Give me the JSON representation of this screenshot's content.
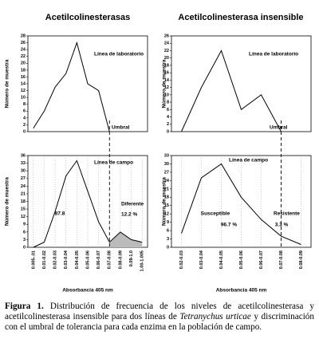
{
  "column_titles": [
    "Acetilcolinesterasas",
    "Acetilcolinesterasa insensible"
  ],
  "chart_data": [
    {
      "type": "line",
      "y_label": "Número de muestra",
      "ylim": [
        0,
        28
      ],
      "yticks": [
        0,
        2,
        4,
        6,
        8,
        10,
        12,
        14,
        16,
        18,
        20,
        22,
        24,
        26,
        28
      ],
      "color": "#000000",
      "values": [
        1,
        6,
        13,
        17,
        26,
        14,
        12,
        0,
        null,
        null,
        null
      ],
      "annotations": [
        "Línea de laboratorio",
        "Umbral"
      ]
    },
    {
      "type": "line",
      "y_label": "Número de muestra",
      "x_label": "Absorbancia 405 nm",
      "ylim": [
        0,
        36
      ],
      "yticks": [
        0,
        3,
        6,
        9,
        12,
        15,
        18,
        21,
        24,
        27,
        30,
        33,
        36
      ],
      "color": "#000000",
      "categories": [
        "0.005-.01",
        "0.01-0.02",
        "0.02-0.03",
        "0.03-0.04",
        "0.04-0.05",
        "0.05-0.06",
        "0.06-0.07",
        "0.07-0.08",
        "0.08-0.09",
        "0.09-1.0",
        "1.00-1.005"
      ],
      "values": [
        0,
        2,
        14,
        28,
        34,
        22,
        10,
        2,
        6,
        3,
        2
      ],
      "threshold_category": "0.07-0.08",
      "shade_after_threshold": true,
      "annotations": [
        "Línea de campo",
        "87.8",
        "Diferente",
        "12.2 %"
      ]
    },
    {
      "type": "line",
      "y_label": "Número de muestra",
      "ylim": [
        0,
        26
      ],
      "yticks": [
        0,
        2,
        4,
        6,
        8,
        10,
        12,
        14,
        16,
        18,
        20,
        22,
        24,
        26
      ],
      "color": "#000000",
      "values": [
        0,
        12,
        22,
        6,
        10,
        0,
        null
      ],
      "annotations": [
        "Línea de laboratorio",
        "Umbral"
      ]
    },
    {
      "type": "line",
      "y_label": "Número de muestra",
      "x_label": "Absorbancia 405 nm",
      "ylim": [
        0,
        33
      ],
      "yticks": [
        0,
        3,
        6,
        9,
        12,
        15,
        18,
        21,
        24,
        27,
        30,
        33
      ],
      "color": "#000000",
      "categories": [
        "0.02-0.03",
        "0.03-0.04",
        "0.04-0.05",
        "0.05-0.06",
        "0.06-0.07",
        "0.07-0.08",
        "0.08-0.09"
      ],
      "values": [
        5,
        25,
        30,
        18,
        10,
        4,
        1
      ],
      "threshold_category": "0.07-0.08",
      "shade_after_threshold": false,
      "annotations": [
        "Línea de campo",
        "Susceptible",
        "96.7 %",
        "Resistente",
        "3.3 %"
      ]
    }
  ],
  "caption": {
    "label": "Figura 1.",
    "text_1": "Distribución de frecuencia de los niveles de acetilcolinesterasa y acetilcolinesterasa insensible para dos líneas de",
    "species": "Tetranychus urticae",
    "text_2": "y discriminación con el umbral de tolerancia para cada enzima en la población de campo."
  }
}
